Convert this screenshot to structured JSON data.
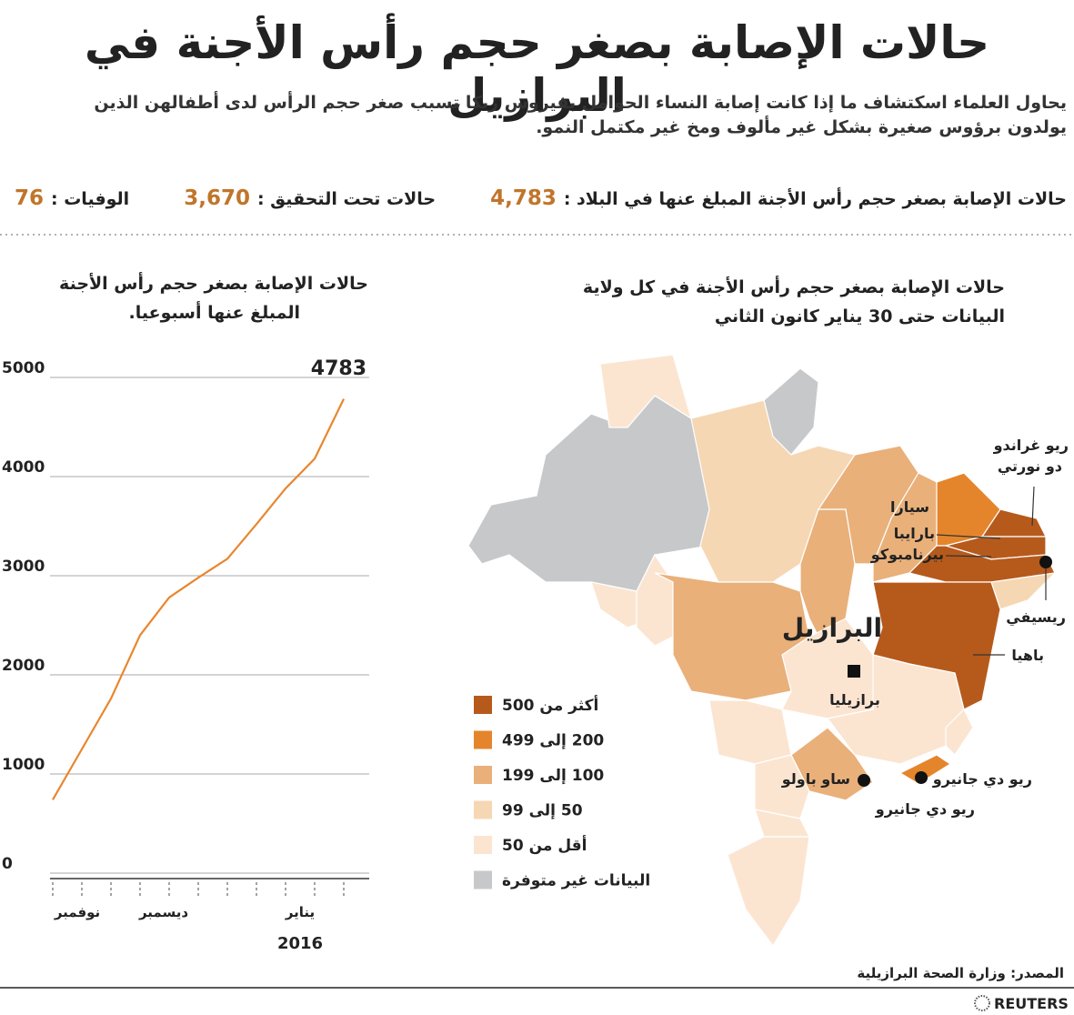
{
  "header": {
    "title": "حالات الإصابة بصغر حجم رأس الأجنة في البرازيل",
    "subtitle": "يحاول العلماء اسكتشاف ما إذا كانت إصابة النساء الحوامل بفيروس زيكا تسبب صغر حجم الرأس لدى أطفالهن الذين يولدون برؤوس صغيرة بشكل غير مألوف ومخ غير مكتمل النمو."
  },
  "stats": [
    {
      "label": "حالات الإصابة بصغر حجم رأس الأجنة المبلغ عنها في البلاد :",
      "value": "4,783"
    },
    {
      "label": "حالات تحت التحقيق :",
      "value": "3,670"
    },
    {
      "label": "الوفيات :",
      "value": "76"
    }
  ],
  "map": {
    "title": [
      "حالات الإصابة بصغر حجم رأس الأجنة في كل ولاية",
      "البيانات حتى 30 يناير كانون الثاني"
    ],
    "country_label": "البرازيل",
    "capital_label": "برازيليا",
    "state_labels": {
      "rgn": [
        "ريو غراندو",
        "دو نورتي"
      ],
      "ceara": "سيارا",
      "paraiba": "بارايبا",
      "pernambuco": "بيرنامبوكو",
      "recife": "ريسيفي",
      "bahia": "باهيا",
      "sao_paulo": "ساو باولو",
      "rio_city": "ريو دي جانيرو",
      "rio_state": "ريو دي جانيرو"
    },
    "legend": [
      {
        "label": "أكثر من 500",
        "color": "#b65a1c"
      },
      {
        "label": "200 إلى 499",
        "color": "#e5852b"
      },
      {
        "label": "100 إلى 199",
        "color": "#e9b07a"
      },
      {
        "label": "50 إلى 99",
        "color": "#f6d7b3"
      },
      {
        "label": "أقل من 50",
        "color": "#fbe5d1"
      },
      {
        "label": "البيانات غير متوفرة",
        "color": "#c6c8ca"
      }
    ]
  },
  "chart_data": {
    "type": "line",
    "title": [
      "حالات الإصابة بصغر حجم رأس الأجنة",
      "المبلغ عنها أسبوعيا."
    ],
    "categories": [
      null,
      null,
      null,
      null,
      null,
      null,
      null,
      null,
      null,
      null,
      null
    ],
    "months": [
      "نوفمبر",
      "ديسمبر",
      "يناير"
    ],
    "year": "2016",
    "series": [
      {
        "color": "#e8862e",
        "values": [
          740,
          1250,
          1760,
          2400,
          2780,
          2980,
          3170,
          3520,
          3880,
          4180,
          4783
        ]
      }
    ],
    "ylim": [
      0,
      5000
    ],
    "yticks": [
      0,
      1000,
      2000,
      3000,
      4000,
      5000
    ],
    "grid": true
  },
  "source": "المصدر: وزارة الصحة البرازيلية",
  "logo": "REUTERS"
}
